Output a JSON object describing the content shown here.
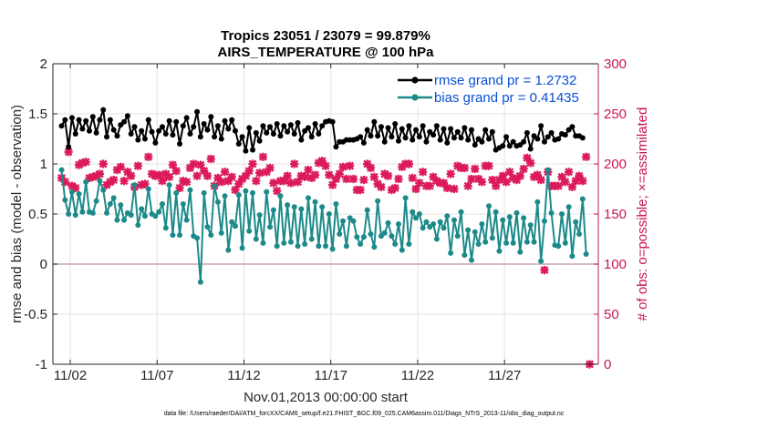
{
  "chart_data": {
    "type": "line",
    "title": [
      "Tropics 23051 / 23079 = 99.879%",
      "AIRS_TEMPERATURE @ 100 hPa"
    ],
    "xlabel": "Nov.01,2013 00:00:00 start",
    "ylabel": "rmse and bias (model - observation)",
    "ylabel_right": "# of obs: o=possible; ×=assimilated",
    "ylim": [
      -1,
      2
    ],
    "ylim_right": [
      0,
      300
    ],
    "yticks": [
      "-1",
      "-0.5",
      "0",
      "0.5",
      "1",
      "1.5",
      "2"
    ],
    "yticks_right": [
      "0",
      "50",
      "100",
      "150",
      "200",
      "250",
      "300"
    ],
    "xlim_days": [
      0.5,
      31.9
    ],
    "xticks": [
      {
        "day": 1.5,
        "label": "11/02"
      },
      {
        "day": 6.5,
        "label": "11/07"
      },
      {
        "day": 11.5,
        "label": "11/12"
      },
      {
        "day": 16.5,
        "label": "11/17"
      },
      {
        "day": 21.5,
        "label": "11/22"
      },
      {
        "day": 26.5,
        "label": "11/27"
      }
    ],
    "footnote": "data file: /Users/raeder/DAI/ATM_forcXX/CAM6_setup/f.e21.FHIST_BGC.f09_025.CAM6assim.011/Diags_NTrS_2013-11/obs_diag_output.nc",
    "series": [
      {
        "name": "rmse",
        "legend": "rmse grand pr = 1.2732",
        "color": "#000000",
        "values": [
          1.38,
          1.44,
          1.17,
          1.46,
          1.3,
          1.44,
          1.35,
          1.43,
          1.33,
          1.47,
          1.31,
          1.44,
          1.54,
          1.27,
          1.44,
          1.34,
          1.28,
          1.39,
          1.42,
          1.48,
          1.3,
          1.37,
          1.24,
          1.33,
          1.25,
          1.44,
          1.32,
          1.21,
          1.33,
          1.37,
          1.3,
          1.43,
          1.29,
          1.42,
          1.2,
          1.38,
          1.46,
          1.3,
          1.37,
          1.52,
          1.27,
          1.4,
          1.34,
          1.47,
          1.27,
          1.38,
          1.25,
          1.43,
          1.35,
          1.44,
          1.33,
          1.2,
          1.27,
          1.13,
          1.36,
          1.14,
          1.31,
          1.23,
          1.38,
          1.31,
          1.37,
          1.3,
          1.4,
          1.28,
          1.38,
          1.32,
          1.39,
          1.3,
          1.41,
          1.24,
          1.33,
          1.36,
          1.27,
          1.4,
          1.3,
          1.38,
          1.42,
          1.43,
          1.42,
          1.17,
          1.22,
          1.22,
          1.24,
          1.24,
          1.24,
          1.25,
          1.27,
          1.21,
          1.34,
          1.28,
          1.42,
          1.28,
          1.37,
          1.22,
          1.36,
          1.27,
          1.4,
          1.23,
          1.35,
          1.26,
          1.38,
          1.24,
          1.34,
          1.27,
          1.38,
          1.22,
          1.32,
          1.29,
          1.38,
          1.24,
          1.35,
          1.21,
          1.35,
          1.26,
          1.32,
          1.26,
          1.36,
          1.24,
          1.34,
          1.19,
          1.25,
          1.22,
          1.34,
          1.25,
          1.32,
          1.14,
          1.16,
          1.18,
          1.27,
          1.18,
          1.22,
          1.18,
          1.19,
          1.22,
          1.31,
          1.15,
          1.28,
          1.25,
          1.38,
          1.22,
          1.27,
          1.31,
          1.24,
          1.25,
          1.3,
          1.29,
          1.34,
          1.37,
          1.28,
          1.28,
          1.26
        ]
      },
      {
        "name": "bias",
        "legend": "bias grand pr = 0.41435",
        "color": "#1d8a8a",
        "values": [
          0.94,
          0.64,
          0.5,
          0.72,
          0.49,
          0.7,
          0.52,
          0.82,
          0.52,
          0.51,
          0.63,
          0.83,
          0.74,
          0.51,
          0.6,
          0.66,
          0.44,
          0.59,
          0.44,
          0.51,
          0.49,
          0.79,
          0.39,
          0.55,
          0.48,
          0.75,
          0.5,
          0.48,
          0.52,
          0.6,
          0.36,
          0.79,
          0.29,
          0.71,
          0.29,
          0.6,
          0.44,
          0.74,
          0.28,
          0.26,
          -0.18,
          0.71,
          0.37,
          0.29,
          0.78,
          0.62,
          0.31,
          0.68,
          0.14,
          0.42,
          0.38,
          0.69,
          0.16,
          0.73,
          0.33,
          0.71,
          0.25,
          0.49,
          0.21,
          0.72,
          0.37,
          0.54,
          0.18,
          0.68,
          0.21,
          0.59,
          0.22,
          0.57,
          0.18,
          0.55,
          0.2,
          0.66,
          0.25,
          0.62,
          0.18,
          0.57,
          0.18,
          0.5,
          0.15,
          0.6,
          0.3,
          0.43,
          0.18,
          0.46,
          0.43,
          0.27,
          0.2,
          0.27,
          0.54,
          0.3,
          0.17,
          0.63,
          0.28,
          0.31,
          0.41,
          0.28,
          0.2,
          0.4,
          0.14,
          0.66,
          0.2,
          0.52,
          0.46,
          0.5,
          0.36,
          0.42,
          0.37,
          0.4,
          0.25,
          0.42,
          0.36,
          0.48,
          0.11,
          0.44,
          0.28,
          0.52,
          0.09,
          0.34,
          0.04,
          0.32,
          0.2,
          0.4,
          0.22,
          0.58,
          0.26,
          0.52,
          0.13,
          0.44,
          0.21,
          0.47,
          0.21,
          0.51,
          0.12,
          0.46,
          0.22,
          0.39,
          0.22,
          0.62,
          0.03,
          0.43,
          0.94,
          0.51,
          0.19,
          0.18,
          0.5,
          0.21,
          0.57,
          0.08,
          0.42,
          0.3,
          0.65,
          0.1
        ]
      },
      {
        "name": "assimilated",
        "axis": "right",
        "color": "#dc1a5a",
        "values": [
          186,
          182,
          212,
          178,
          176,
          199,
          201,
          202,
          186,
          187,
          188,
          190,
          200,
          179,
          182,
          184,
          194,
          197,
          183,
          192,
          188,
          177,
          198,
          179,
          180,
          207,
          190,
          188,
          189,
          183,
          190,
          187,
          199,
          193,
          176,
          183,
          182,
          196,
          200,
          188,
          199,
          193,
          188,
          205,
          178,
          186,
          182,
          192,
          183,
          187,
          174,
          180,
          185,
          188,
          193,
          200,
          183,
          191,
          207,
          192,
          196,
          181,
          173,
          183,
          183,
          188,
          181,
          200,
          182,
          188,
          187,
          194,
          186,
          189,
          201,
          203,
          198,
          189,
          179,
          185,
          190,
          197,
          185,
          198,
          185,
          174,
          174,
          184,
          200,
          196,
          187,
          180,
          177,
          190,
          188,
          174,
          176,
          185,
          197,
          200,
          200,
          186,
          175,
          181,
          192,
          178,
          178,
          187,
          183,
          181,
          181,
          176,
          190,
          175,
          198,
          196,
          196,
          178,
          185,
          195,
          185,
          182,
          198,
          198,
          184,
          178,
          184,
          188,
          182,
          192,
          186,
          184,
          188,
          195,
          206,
          201,
          187,
          189,
          184,
          94,
          192,
          178,
          178,
          178,
          187,
          182,
          192,
          177,
          183,
          188,
          183,
          207,
          0
        ]
      }
    ]
  }
}
